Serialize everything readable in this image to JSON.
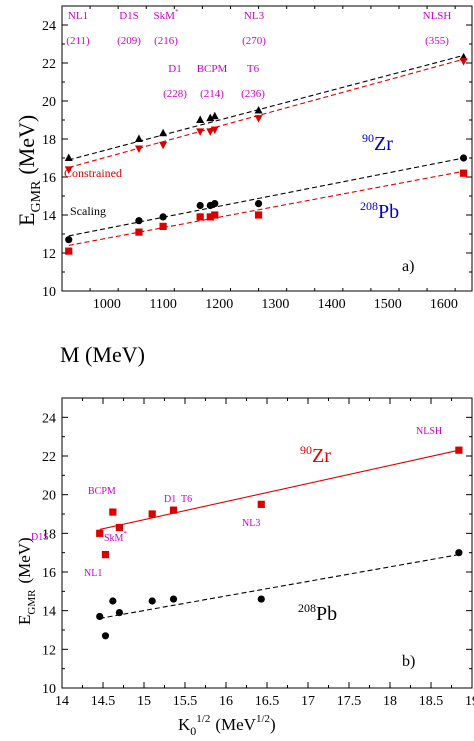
{
  "chart_data": [
    {
      "type": "scatter",
      "panel_label": "a)",
      "xlabel": "M (MeV)",
      "ylabel_main": "E",
      "ylabel_sub": "GMR",
      "ylabel_unit": "(MeV)",
      "xlim": [
        920,
        1650
      ],
      "ylim": [
        10,
        25
      ],
      "xticks": [
        1000,
        1100,
        1200,
        1300,
        1400,
        1500,
        1600
      ],
      "yticks": [
        10,
        12,
        14,
        16,
        18,
        20,
        22,
        24
      ],
      "models": [
        {
          "name": "NL1",
          "value": "(211)",
          "color": "#cc00cc"
        },
        {
          "name": "D1S",
          "value": "(209)",
          "color": "#cc00cc"
        },
        {
          "name": "SkM",
          "sup": "*",
          "value": "(216)",
          "color": "#cc00cc"
        },
        {
          "name": "D1",
          "value": "(228)",
          "color": "#cc00cc"
        },
        {
          "name": "BCPM",
          "value": "(214)",
          "color": "#cc00cc"
        },
        {
          "name": "T6",
          "value": "(236)",
          "color": "#cc00cc"
        },
        {
          "name": "NL3",
          "value": "(270)",
          "color": "#cc00cc"
        },
        {
          "name": "NLSH",
          "value": "(355)",
          "color": "#cc00cc"
        }
      ],
      "annotations": [
        {
          "text": "Constrained",
          "color": "#dd0000"
        },
        {
          "text": "Scaling",
          "color": "#000000"
        }
      ],
      "nuclei": [
        {
          "mass": "90",
          "symbol": "Zr",
          "color": "#0000cc"
        },
        {
          "mass": "208",
          "symbol": "Pb",
          "color": "#0000cc"
        }
      ],
      "series": [
        {
          "marker": "triangle-up",
          "color": "#000000",
          "x": [
            932,
            1057,
            1100,
            1166,
            1184,
            1192,
            1270,
            1635
          ],
          "y": [
            17.0,
            18.0,
            18.3,
            19.0,
            19.1,
            19.2,
            19.5,
            22.3
          ],
          "fit": [
            [
              932,
              16.9
            ],
            [
              1635,
              22.4
            ]
          ]
        },
        {
          "marker": "triangle-down",
          "color": "#dd0000",
          "x": [
            932,
            1057,
            1100,
            1166,
            1184,
            1192,
            1270,
            1635
          ],
          "y": [
            16.4,
            17.5,
            17.7,
            18.4,
            18.4,
            18.5,
            19.1,
            22.1
          ],
          "fit": [
            [
              932,
              16.5
            ],
            [
              1635,
              22.2
            ]
          ]
        },
        {
          "marker": "circle",
          "color": "#000000",
          "x": [
            932,
            1057,
            1100,
            1166,
            1184,
            1192,
            1270,
            1635
          ],
          "y": [
            12.7,
            13.7,
            13.9,
            14.5,
            14.5,
            14.6,
            14.6,
            17.0
          ],
          "fit": [
            [
              932,
              12.9
            ],
            [
              1635,
              17.0
            ]
          ]
        },
        {
          "marker": "square",
          "color": "#dd0000",
          "x": [
            932,
            1057,
            1100,
            1166,
            1184,
            1192,
            1270,
            1635
          ],
          "y": [
            12.1,
            13.1,
            13.4,
            13.9,
            13.9,
            14.0,
            14.0,
            16.2
          ],
          "fit": [
            [
              932,
              12.4
            ],
            [
              1635,
              16.3
            ]
          ]
        }
      ]
    },
    {
      "type": "scatter",
      "panel_label": "b)",
      "xlabel_main": "K",
      "xlabel_sub": "0",
      "xlabel_sup": "1/2",
      "xlabel_unit_pre": "(MeV",
      "xlabel_unit_sup": "1/2",
      "xlabel_unit_post": ")",
      "ylabel_main": "E",
      "ylabel_sub": "GMR",
      "ylabel_unit": "(MeV)",
      "xlim": [
        14,
        19
      ],
      "ylim": [
        10,
        25
      ],
      "xticks": [
        "14",
        "14.5",
        "15",
        "15.5",
        "16",
        "16.5",
        "17",
        "17.5",
        "18",
        "18.5",
        "19"
      ],
      "yticks": [
        10,
        12,
        14,
        16,
        18,
        20,
        22,
        24
      ],
      "point_labels": [
        {
          "text": "NLSH"
        },
        {
          "text": "BCPM"
        },
        {
          "text": "D1"
        },
        {
          "text": "T6"
        },
        {
          "text": "D1S"
        },
        {
          "text": "SkM",
          "sup": "*"
        },
        {
          "text": "NL1"
        },
        {
          "text": "NL3"
        }
      ],
      "nuclei": [
        {
          "mass": "90",
          "symbol": "Zr",
          "color": "#dd0000"
        },
        {
          "mass": "208",
          "symbol": "Pb",
          "color": "#000000"
        }
      ],
      "series": [
        {
          "marker": "square",
          "color": "#dd0000",
          "x": [
            14.46,
            14.53,
            14.62,
            14.7,
            15.1,
            15.36,
            16.43,
            18.84
          ],
          "y": [
            18.0,
            16.9,
            19.1,
            18.3,
            19.0,
            19.2,
            19.5,
            22.3
          ],
          "fit": [
            [
              14.46,
              18.2
            ],
            [
              18.84,
              22.3
            ]
          ]
        },
        {
          "marker": "circle",
          "color": "#000000",
          "x": [
            14.46,
            14.53,
            14.62,
            14.7,
            15.1,
            15.36,
            16.43,
            18.84
          ],
          "y": [
            13.7,
            12.7,
            14.5,
            13.9,
            14.5,
            14.6,
            14.6,
            17.0
          ],
          "fit": [
            [
              14.46,
              13.6
            ],
            [
              18.84,
              16.9
            ]
          ]
        }
      ]
    }
  ]
}
